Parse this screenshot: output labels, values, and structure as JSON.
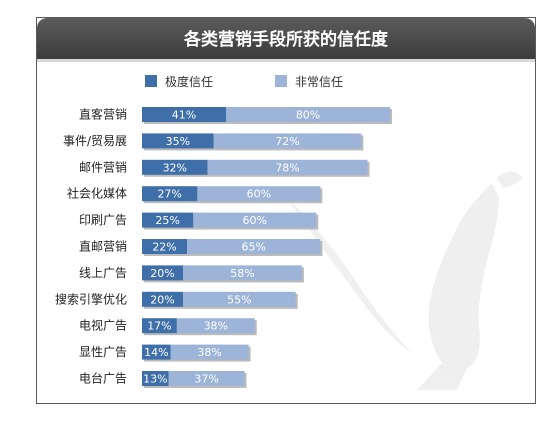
{
  "chart_data": {
    "type": "bar",
    "orientation": "horizontal",
    "stacked": true,
    "title": "各类营销手段所获的信任度",
    "categories": [
      "直客营销",
      "事件/贸易展",
      "邮件营销",
      "社会化媒体",
      "印刷广告",
      "直邮营销",
      "线上广告",
      "搜索引擎优化",
      "电视广告",
      "显性广告",
      "电台广告"
    ],
    "series": [
      {
        "name": "极度信任",
        "values": [
          41,
          35,
          32,
          27,
          25,
          22,
          20,
          20,
          17,
          14,
          13
        ],
        "labels": [
          "41%",
          "35%",
          "32%",
          "27%",
          "25%",
          "22%",
          "20%",
          "20%",
          "17%",
          "14%",
          "13%"
        ]
      },
      {
        "name": "非常信任",
        "values": [
          80,
          72,
          78,
          60,
          60,
          65,
          58,
          55,
          38,
          38,
          37
        ],
        "labels": [
          "80%",
          "72%",
          "78%",
          "60%",
          "60%",
          "65%",
          "58%",
          "55%",
          "38%",
          "38%",
          "37%"
        ]
      }
    ],
    "legend_position": "top",
    "grid": false,
    "colors": {
      "series1": "#3e6fa8",
      "series2": "#9cb4d8"
    }
  }
}
